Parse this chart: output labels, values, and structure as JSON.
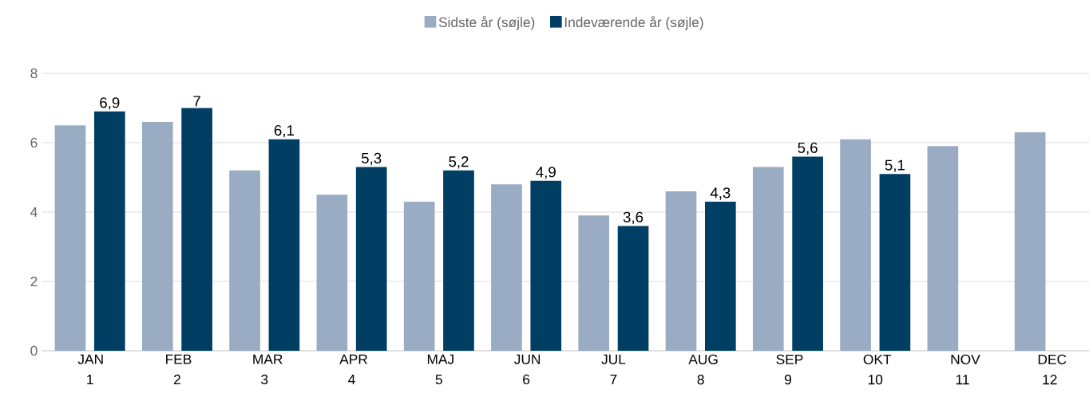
{
  "chart_data": {
    "type": "bar",
    "categories": [
      "JAN 1",
      "FEB 2",
      "MAR 3",
      "APR 4",
      "MAJ 5",
      "JUN 6",
      "JUL 7",
      "AUG 8",
      "SEP 9",
      "OKT 10",
      "NOV 11",
      "DEC 12"
    ],
    "series": [
      {
        "name": "Sidste år (søjle)",
        "color": "#9aabc4",
        "values": [
          6.5,
          6.6,
          5.2,
          4.5,
          4.3,
          4.8,
          3.9,
          4.6,
          5.3,
          6.1,
          5.9,
          6.3
        ]
      },
      {
        "name": "Indeværende år (søjle)",
        "color": "#003f63",
        "values": [
          6.9,
          7,
          6.1,
          5.3,
          5.2,
          4.9,
          3.6,
          4.3,
          5.6,
          5.1,
          null,
          null
        ],
        "value_labels": [
          "6,9",
          "7",
          "6,1",
          "5,3",
          "5,2",
          "4,9",
          "3,6",
          "4,3",
          "5,6",
          "5,1",
          null,
          null
        ]
      }
    ],
    "ylim": [
      0,
      8
    ],
    "yticks": [
      0,
      2,
      4,
      6,
      8
    ],
    "grid": "y",
    "legend": "top"
  }
}
